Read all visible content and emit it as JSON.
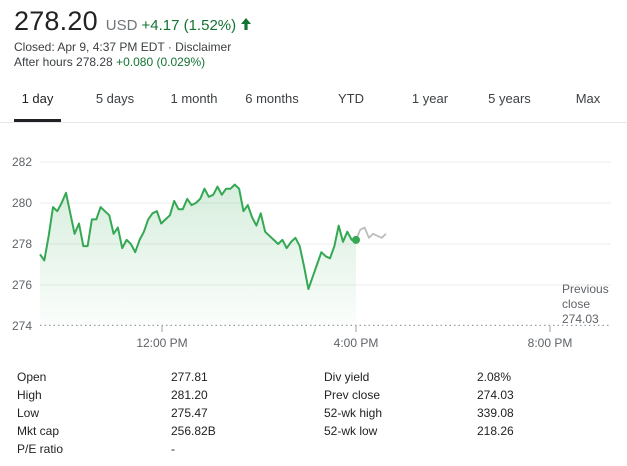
{
  "quote": {
    "price": "278.20",
    "currency": "USD",
    "change": "+4.17 (1.52%)",
    "closed_text": "Closed: Apr 9, 4:37 PM EDT · Disclaimer",
    "after_hours_label": "After hours 278.28",
    "after_hours_change": "+0.080 (0.029%)",
    "positive_color": "#137333"
  },
  "tabs": [
    {
      "label": "1 day",
      "active": true
    },
    {
      "label": "5 days"
    },
    {
      "label": "1 month"
    },
    {
      "label": "6 months"
    },
    {
      "label": "YTD"
    },
    {
      "label": "1 year"
    },
    {
      "label": "5 years"
    },
    {
      "label": "Max"
    }
  ],
  "chart_data": {
    "type": "line",
    "x_ticks": [
      "12:00 PM",
      "4:00 PM",
      "8:00 PM"
    ],
    "y_ticks": [
      274,
      276,
      278,
      280,
      282
    ],
    "ylim": [
      274,
      282
    ],
    "grid": true,
    "previous_close_label_line1": "Previous",
    "previous_close_label_line2": "close",
    "previous_close_value": "274.03",
    "previous_close": 274.03,
    "line_color": "#34a853",
    "after_hours_color": "#bdbdbd",
    "session_values": [
      277.5,
      277.2,
      278.4,
      279.8,
      279.6,
      280.0,
      280.5,
      279.5,
      278.5,
      279.0,
      277.9,
      277.9,
      279.2,
      279.2,
      279.8,
      279.6,
      279.4,
      278.5,
      278.8,
      277.8,
      278.2,
      278.0,
      277.6,
      278.2,
      278.6,
      279.2,
      279.5,
      279.6,
      279.0,
      279.2,
      279.4,
      280.1,
      279.7,
      279.7,
      280.2,
      279.9,
      280.0,
      280.2,
      280.7,
      280.3,
      280.4,
      280.8,
      280.4,
      280.7,
      280.7,
      280.9,
      280.7,
      279.6,
      279.9,
      279.3,
      278.9,
      279.5,
      278.6,
      278.4,
      278.2,
      278.0,
      278.2,
      277.8,
      278.1,
      278.3,
      277.9,
      276.9,
      275.8,
      276.4,
      277.0,
      277.6,
      277.4,
      277.3,
      277.9,
      278.9,
      278.1,
      278.6,
      278.2,
      278.2
    ],
    "after_hours_values": [
      278.2,
      278.7,
      278.8,
      278.3,
      278.5,
      278.4,
      278.3,
      278.5
    ],
    "current_value": 278.2
  },
  "stats": {
    "left": [
      {
        "label": "Open",
        "value": "277.81"
      },
      {
        "label": "High",
        "value": "281.20"
      },
      {
        "label": "Low",
        "value": "275.47"
      },
      {
        "label": "Mkt cap",
        "value": "256.82B"
      },
      {
        "label": "P/E ratio",
        "value": "-"
      }
    ],
    "right": [
      {
        "label": "Div yield",
        "value": "2.08%"
      },
      {
        "label": "Prev close",
        "value": "274.03"
      },
      {
        "label": "52-wk high",
        "value": "339.08"
      },
      {
        "label": "52-wk low",
        "value": "218.26"
      }
    ]
  }
}
